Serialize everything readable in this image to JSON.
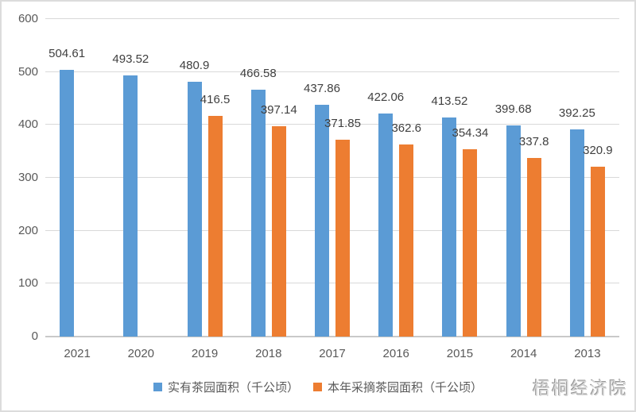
{
  "chart_data": {
    "type": "bar",
    "title": "",
    "xlabel": "",
    "ylabel": "",
    "categories": [
      "2021",
      "2020",
      "2019",
      "2018",
      "2017",
      "2016",
      "2015",
      "2014",
      "2013"
    ],
    "series": [
      {
        "key": "actual-tea-garden-area",
        "name": "实有茶园面积（千公顷）",
        "color": "#5B9BD5",
        "values": [
          504.61,
          493.52,
          480.9,
          466.58,
          437.86,
          422.06,
          413.52,
          399.68,
          392.25
        ]
      },
      {
        "key": "picked-tea-garden-area",
        "name": "本年采摘茶园面积（千公顷）",
        "color": "#ED7D31",
        "values": [
          null,
          null,
          416.5,
          397.14,
          371.85,
          362.6,
          354.34,
          337.8,
          320.9
        ]
      }
    ],
    "ylim": [
      0,
      600
    ],
    "yticks": [
      0,
      100,
      200,
      300,
      400,
      500,
      600
    ],
    "grid": true,
    "data_labels": true,
    "legend_position": "bottom"
  },
  "colors": {
    "gridline": "#D9D9D9",
    "baseline": "#C9C9C9",
    "axis_text": "#595959",
    "value_label_text": "#3F3F3F"
  },
  "watermark": {
    "text": "梧桐经济院"
  }
}
